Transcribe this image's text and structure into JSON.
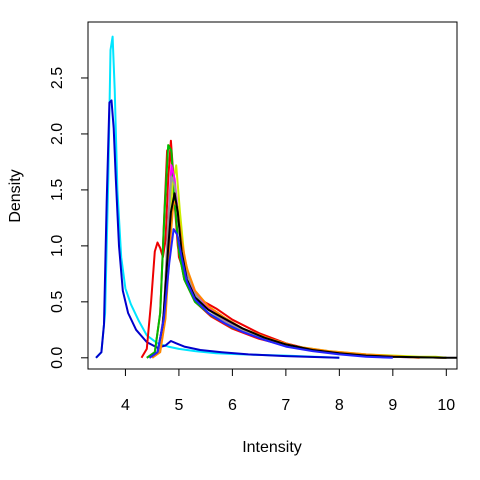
{
  "chart_data": {
    "type": "line",
    "title": "",
    "xlabel": "Intensity",
    "ylabel": "Density",
    "xlim": [
      3.3,
      10.2
    ],
    "ylim": [
      -0.1,
      3.0
    ],
    "xticks": [
      4,
      5,
      6,
      7,
      8,
      9,
      10
    ],
    "yticks": [
      0.0,
      0.5,
      1.0,
      1.5,
      2.0,
      2.5
    ],
    "xtick_labels": [
      "4",
      "5",
      "6",
      "7",
      "8",
      "9",
      "10"
    ],
    "ytick_labels": [
      "0.0",
      "0.5",
      "1.0",
      "1.5",
      "2.0",
      "2.5"
    ],
    "grid": false,
    "legend": "none",
    "series": [
      {
        "color": "#00e5ff",
        "x": [
          3.45,
          3.55,
          3.62,
          3.68,
          3.72,
          3.76,
          3.8,
          3.85,
          3.92,
          4.0,
          4.1,
          4.25,
          4.4,
          4.6,
          4.8,
          5.0,
          5.3,
          5.7,
          6.2,
          7.0,
          8.0
        ],
        "y": [
          0.0,
          0.05,
          0.4,
          1.6,
          2.75,
          2.87,
          2.4,
          1.5,
          0.9,
          0.62,
          0.48,
          0.33,
          0.2,
          0.13,
          0.1,
          0.08,
          0.06,
          0.04,
          0.03,
          0.02,
          0.0
        ]
      },
      {
        "color": "#0000cc",
        "x": [
          3.45,
          3.55,
          3.6,
          3.65,
          3.7,
          3.74,
          3.78,
          3.82,
          3.88,
          3.95,
          4.05,
          4.2,
          4.4,
          4.6,
          4.75,
          4.85,
          4.95,
          5.1,
          5.4,
          5.8,
          6.3,
          7.0,
          8.0
        ],
        "y": [
          0.0,
          0.05,
          0.3,
          1.4,
          2.28,
          2.3,
          2.05,
          1.6,
          1.0,
          0.6,
          0.4,
          0.25,
          0.14,
          0.09,
          0.11,
          0.15,
          0.13,
          0.1,
          0.07,
          0.05,
          0.03,
          0.015,
          0.0
        ]
      },
      {
        "color": "#ee0000",
        "x": [
          4.3,
          4.4,
          4.48,
          4.55,
          4.6,
          4.65,
          4.7,
          4.75,
          4.8,
          4.85,
          4.9,
          5.0,
          5.2,
          5.4,
          5.7,
          6.0,
          6.5,
          7.0,
          7.5,
          8.0,
          9.0,
          10.0
        ],
        "y": [
          0.0,
          0.08,
          0.5,
          0.95,
          1.03,
          0.98,
          0.9,
          1.05,
          1.6,
          1.94,
          1.6,
          0.9,
          0.62,
          0.52,
          0.44,
          0.34,
          0.22,
          0.13,
          0.07,
          0.04,
          0.01,
          0.0
        ]
      },
      {
        "color": "#ff0000",
        "x": [
          4.4,
          4.55,
          4.65,
          4.72,
          4.78,
          4.84,
          4.9,
          4.98,
          5.1,
          5.3,
          5.6,
          6.0,
          6.5,
          7.0,
          7.5,
          8.0,
          8.5,
          9.0,
          10.0
        ],
        "y": [
          0.0,
          0.05,
          0.4,
          1.2,
          1.85,
          1.9,
          1.5,
          1.0,
          0.7,
          0.5,
          0.37,
          0.26,
          0.17,
          0.11,
          0.07,
          0.04,
          0.02,
          0.01,
          0.0
        ]
      },
      {
        "color": "#00bb00",
        "x": [
          4.4,
          4.55,
          4.65,
          4.73,
          4.8,
          4.86,
          4.92,
          5.0,
          5.1,
          5.3,
          5.6,
          6.0,
          6.5,
          7.0,
          7.5,
          8.0,
          9.0,
          10.0
        ],
        "y": [
          0.0,
          0.05,
          0.4,
          1.3,
          1.9,
          1.85,
          1.4,
          0.95,
          0.7,
          0.5,
          0.38,
          0.27,
          0.18,
          0.11,
          0.07,
          0.04,
          0.01,
          0.0
        ]
      },
      {
        "color": "#ccee00",
        "x": [
          4.5,
          4.62,
          4.72,
          4.8,
          4.88,
          4.95,
          5.02,
          5.1,
          5.25,
          5.5,
          5.8,
          6.2,
          6.7,
          7.2,
          7.8,
          8.5,
          9.5,
          9.8,
          10.0
        ],
        "y": [
          0.0,
          0.05,
          0.3,
          0.9,
          1.55,
          1.72,
          1.3,
          0.9,
          0.62,
          0.45,
          0.34,
          0.25,
          0.16,
          0.1,
          0.06,
          0.03,
          0.01,
          0.01,
          0.0
        ]
      },
      {
        "color": "#ff00ff",
        "x": [
          4.5,
          4.62,
          4.72,
          4.8,
          4.86,
          4.92,
          5.0,
          5.1,
          5.25,
          5.5,
          5.8,
          6.2,
          6.7,
          7.2,
          7.8,
          8.5,
          9.5
        ],
        "y": [
          0.0,
          0.05,
          0.4,
          1.2,
          1.72,
          1.6,
          1.2,
          0.85,
          0.62,
          0.46,
          0.35,
          0.24,
          0.15,
          0.09,
          0.05,
          0.02,
          0.0
        ]
      },
      {
        "color": "#999999",
        "x": [
          4.5,
          4.62,
          4.72,
          4.8,
          4.86,
          4.92,
          5.0,
          5.1,
          5.25,
          5.5,
          5.8,
          6.2,
          6.7,
          7.2,
          7.8,
          8.5,
          9.5
        ],
        "y": [
          0.0,
          0.05,
          0.4,
          1.2,
          1.62,
          1.55,
          1.2,
          0.85,
          0.6,
          0.45,
          0.34,
          0.24,
          0.15,
          0.09,
          0.05,
          0.02,
          0.0
        ]
      },
      {
        "color": "#ff8800",
        "x": [
          4.5,
          4.65,
          4.75,
          4.83,
          4.9,
          4.97,
          5.05,
          5.15,
          5.3,
          5.55,
          5.85,
          6.2,
          6.7,
          7.2,
          7.8,
          8.5,
          9.5
        ],
        "y": [
          0.0,
          0.05,
          0.35,
          1.0,
          1.4,
          1.35,
          1.05,
          0.8,
          0.6,
          0.46,
          0.36,
          0.26,
          0.17,
          0.1,
          0.06,
          0.03,
          0.0
        ]
      },
      {
        "color": "#000000",
        "x": [
          4.45,
          4.6,
          4.7,
          4.78,
          4.85,
          4.92,
          4.98,
          5.05,
          5.15,
          5.3,
          5.55,
          5.85,
          6.2,
          6.6,
          7.0,
          7.5,
          8.0,
          8.5,
          9.0,
          9.5,
          10.0,
          10.2
        ],
        "y": [
          0.0,
          0.05,
          0.3,
          0.85,
          1.3,
          1.47,
          1.3,
          0.95,
          0.7,
          0.54,
          0.43,
          0.35,
          0.26,
          0.18,
          0.12,
          0.07,
          0.04,
          0.02,
          0.01,
          0.005,
          0.0,
          0.0
        ]
      },
      {
        "color": "#2222ff",
        "x": [
          4.45,
          4.6,
          4.72,
          4.82,
          4.9,
          4.97,
          5.05,
          5.15,
          5.3,
          5.55,
          5.85,
          6.2,
          6.6,
          7.0,
          7.5,
          8.0,
          8.5,
          9.0
        ],
        "y": [
          0.0,
          0.05,
          0.35,
          0.85,
          1.15,
          1.1,
          0.9,
          0.68,
          0.52,
          0.4,
          0.31,
          0.23,
          0.16,
          0.1,
          0.06,
          0.03,
          0.01,
          0.0
        ]
      }
    ]
  }
}
